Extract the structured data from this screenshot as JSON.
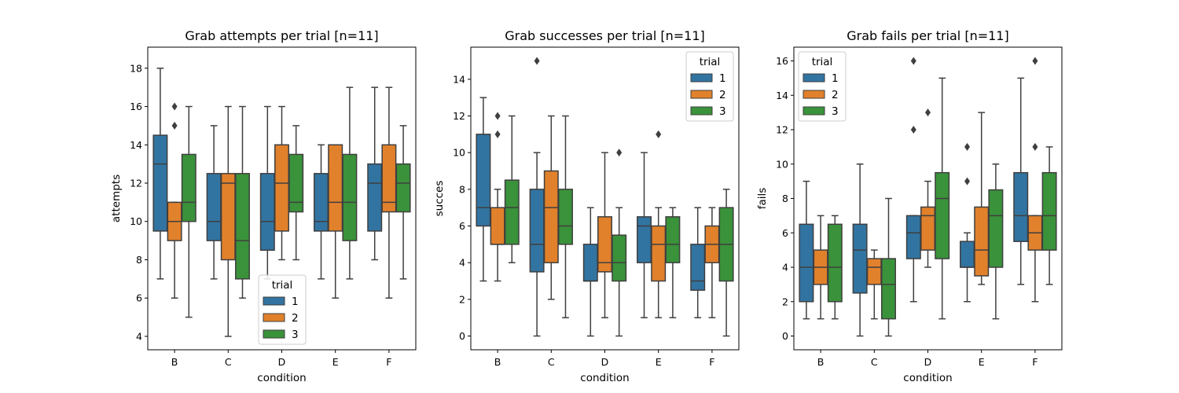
{
  "chart_data": [
    {
      "type": "box",
      "title": "Grab attempts per trial [n=11]",
      "xlabel": "condition",
      "ylabel": "attempts",
      "categories": [
        "B",
        "C",
        "D",
        "E",
        "F"
      ],
      "ylim": [
        3.3,
        19.1
      ],
      "yticks": [
        4,
        6,
        8,
        10,
        12,
        14,
        16,
        18
      ],
      "legend": {
        "title": "trial",
        "placement": "lower-center"
      },
      "series": [
        {
          "name": "1",
          "color": "#3274a1",
          "boxes": [
            {
              "whislo": 7,
              "q1": 9.5,
              "med": 13,
              "q3": 14.5,
              "whishi": 18,
              "fliers": []
            },
            {
              "whislo": 7,
              "q1": 9,
              "med": 10,
              "q3": 12.5,
              "whishi": 15,
              "fliers": []
            },
            {
              "whislo": 7,
              "q1": 8.5,
              "med": 10,
              "q3": 12.5,
              "whishi": 16,
              "fliers": []
            },
            {
              "whislo": 7,
              "q1": 9.5,
              "med": 10,
              "q3": 12.5,
              "whishi": 14,
              "fliers": []
            },
            {
              "whislo": 8,
              "q1": 9.5,
              "med": 12,
              "q3": 13,
              "whishi": 17,
              "fliers": []
            }
          ]
        },
        {
          "name": "2",
          "color": "#e1812c",
          "boxes": [
            {
              "whislo": 6,
              "q1": 9,
              "med": 10,
              "q3": 11,
              "whishi": 11,
              "fliers": [
                15,
                16
              ]
            },
            {
              "whislo": 4,
              "q1": 8,
              "med": 12,
              "q3": 12.5,
              "whishi": 16,
              "fliers": []
            },
            {
              "whislo": 8,
              "q1": 9.5,
              "med": 12,
              "q3": 14,
              "whishi": 16,
              "fliers": []
            },
            {
              "whislo": 6,
              "q1": 9.5,
              "med": 11,
              "q3": 14,
              "whishi": 14,
              "fliers": []
            },
            {
              "whislo": 6,
              "q1": 10.5,
              "med": 11,
              "q3": 14,
              "whishi": 17,
              "fliers": []
            }
          ]
        },
        {
          "name": "3",
          "color": "#3a923a",
          "boxes": [
            {
              "whislo": 5,
              "q1": 10,
              "med": 11,
              "q3": 13.5,
              "whishi": 16,
              "fliers": []
            },
            {
              "whislo": 6,
              "q1": 7,
              "med": 9,
              "q3": 12.5,
              "whishi": 16,
              "fliers": []
            },
            {
              "whislo": 8,
              "q1": 10.5,
              "med": 11,
              "q3": 13.5,
              "whishi": 15,
              "fliers": []
            },
            {
              "whislo": 7,
              "q1": 9,
              "med": 11,
              "q3": 13.5,
              "whishi": 17,
              "fliers": []
            },
            {
              "whislo": 7,
              "q1": 10.5,
              "med": 12,
              "q3": 13,
              "whishi": 15,
              "fliers": []
            }
          ]
        }
      ]
    },
    {
      "type": "box",
      "title": "Grab successes per trial [n=11]",
      "xlabel": "condition",
      "ylabel": "succes",
      "categories": [
        "B",
        "C",
        "D",
        "E",
        "F"
      ],
      "ylim": [
        -0.75,
        15.75
      ],
      "yticks": [
        0,
        2,
        4,
        6,
        8,
        10,
        12,
        14
      ],
      "legend": {
        "title": "trial",
        "placement": "upper-right"
      },
      "series": [
        {
          "name": "1",
          "color": "#3274a1",
          "boxes": [
            {
              "whislo": 3,
              "q1": 6,
              "med": 7,
              "q3": 11,
              "whishi": 13,
              "fliers": []
            },
            {
              "whislo": 0,
              "q1": 3.5,
              "med": 5,
              "q3": 8,
              "whishi": 10,
              "fliers": [
                15
              ]
            },
            {
              "whislo": 0,
              "q1": 3,
              "med": 3,
              "q3": 5,
              "whishi": 7,
              "fliers": []
            },
            {
              "whislo": 1,
              "q1": 4,
              "med": 6,
              "q3": 6.5,
              "whishi": 10,
              "fliers": []
            },
            {
              "whislo": 1,
              "q1": 2.5,
              "med": 3,
              "q3": 5,
              "whishi": 7,
              "fliers": []
            }
          ]
        },
        {
          "name": "2",
          "color": "#e1812c",
          "boxes": [
            {
              "whislo": 3,
              "q1": 5,
              "med": 5,
              "q3": 7,
              "whishi": 8,
              "fliers": [
                11,
                12
              ]
            },
            {
              "whislo": 2,
              "q1": 4,
              "med": 7,
              "q3": 9,
              "whishi": 12,
              "fliers": []
            },
            {
              "whislo": 1,
              "q1": 3.5,
              "med": 4,
              "q3": 6.5,
              "whishi": 10,
              "fliers": []
            },
            {
              "whislo": 1,
              "q1": 3,
              "med": 5,
              "q3": 6,
              "whishi": 7,
              "fliers": [
                11
              ]
            },
            {
              "whislo": 1,
              "q1": 4,
              "med": 5,
              "q3": 6,
              "whishi": 7,
              "fliers": []
            }
          ]
        },
        {
          "name": "3",
          "color": "#3a923a",
          "boxes": [
            {
              "whislo": 4,
              "q1": 5,
              "med": 7,
              "q3": 8.5,
              "whishi": 12,
              "fliers": []
            },
            {
              "whislo": 1,
              "q1": 5,
              "med": 6,
              "q3": 8,
              "whishi": 12,
              "fliers": []
            },
            {
              "whislo": 0,
              "q1": 3,
              "med": 4,
              "q3": 5.5,
              "whishi": 7,
              "fliers": [
                10
              ]
            },
            {
              "whislo": 1,
              "q1": 4,
              "med": 5,
              "q3": 6.5,
              "whishi": 7,
              "fliers": []
            },
            {
              "whislo": 0,
              "q1": 3,
              "med": 5,
              "q3": 7,
              "whishi": 8,
              "fliers": []
            }
          ]
        }
      ]
    },
    {
      "type": "box",
      "title": "Grab fails per trial [n=11]",
      "xlabel": "condition",
      "ylabel": "fails",
      "categories": [
        "B",
        "C",
        "D",
        "E",
        "F"
      ],
      "ylim": [
        -0.8,
        16.8
      ],
      "yticks": [
        0,
        2,
        4,
        6,
        8,
        10,
        12,
        14,
        16
      ],
      "legend": {
        "title": "trial",
        "placement": "upper-left"
      },
      "series": [
        {
          "name": "1",
          "color": "#3274a1",
          "boxes": [
            {
              "whislo": 1,
              "q1": 2,
              "med": 4,
              "q3": 6.5,
              "whishi": 9,
              "fliers": []
            },
            {
              "whislo": 0,
              "q1": 2.5,
              "med": 5,
              "q3": 6.5,
              "whishi": 10,
              "fliers": []
            },
            {
              "whislo": 2,
              "q1": 4.5,
              "med": 6,
              "q3": 7,
              "whishi": 7,
              "fliers": [
                12,
                16
              ]
            },
            {
              "whislo": 2,
              "q1": 4,
              "med": 4,
              "q3": 5.5,
              "whishi": 6,
              "fliers": [
                9,
                11
              ]
            },
            {
              "whislo": 3,
              "q1": 5.5,
              "med": 7,
              "q3": 9.5,
              "whishi": 15,
              "fliers": []
            }
          ]
        },
        {
          "name": "2",
          "color": "#e1812c",
          "boxes": [
            {
              "whislo": 1,
              "q1": 3,
              "med": 4,
              "q3": 5,
              "whishi": 7,
              "fliers": []
            },
            {
              "whislo": 1,
              "q1": 3,
              "med": 4,
              "q3": 4.5,
              "whishi": 5,
              "fliers": []
            },
            {
              "whislo": 4,
              "q1": 5,
              "med": 7,
              "q3": 7.5,
              "whishi": 9,
              "fliers": [
                13
              ]
            },
            {
              "whislo": 3,
              "q1": 3.5,
              "med": 5,
              "q3": 7.5,
              "whishi": 13,
              "fliers": []
            },
            {
              "whislo": 2,
              "q1": 5,
              "med": 6,
              "q3": 7,
              "whishi": 7,
              "fliers": [
                11,
                16
              ]
            }
          ]
        },
        {
          "name": "3",
          "color": "#3a923a",
          "boxes": [
            {
              "whislo": 1,
              "q1": 2,
              "med": 4,
              "q3": 6.5,
              "whishi": 7,
              "fliers": []
            },
            {
              "whislo": 0,
              "q1": 1,
              "med": 3,
              "q3": 4.5,
              "whishi": 8,
              "fliers": []
            },
            {
              "whislo": 1,
              "q1": 4.5,
              "med": 8,
              "q3": 9.5,
              "whishi": 15,
              "fliers": []
            },
            {
              "whislo": 1,
              "q1": 4,
              "med": 7,
              "q3": 8.5,
              "whishi": 10,
              "fliers": []
            },
            {
              "whislo": 3,
              "q1": 5,
              "med": 7,
              "q3": 9.5,
              "whishi": 11,
              "fliers": []
            }
          ]
        }
      ]
    }
  ]
}
